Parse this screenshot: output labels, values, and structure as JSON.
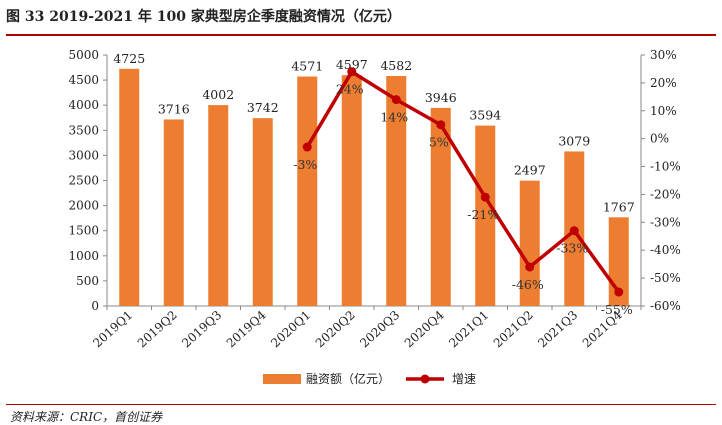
{
  "title": "图 33 2019-2021 年 100 家典型房企季度融资情况（亿元）",
  "source": "资料来源：CRIC，首创证券",
  "colors": {
    "bar": "#ED7D31",
    "line": "#C00000",
    "rule": "#B30000",
    "axis": "#888888"
  },
  "chart_data": {
    "type": "bar+line",
    "categories": [
      "2019Q1",
      "2019Q2",
      "2019Q3",
      "2019Q4",
      "2020Q1",
      "2020Q2",
      "2020Q3",
      "2020Q4",
      "2021Q1",
      "2021Q2",
      "2021Q3",
      "2021Q4"
    ],
    "series": [
      {
        "name": "融资额（亿元）",
        "type": "bar",
        "axis": "left",
        "values": [
          4725,
          3716,
          4002,
          3742,
          4571,
          4597,
          4582,
          3946,
          3594,
          2497,
          3079,
          1767
        ],
        "labels": [
          "4725",
          "3716",
          "4002",
          "3742",
          "4571",
          "4597",
          "4582",
          "3946",
          "3594",
          "2497",
          "3079",
          "1767"
        ]
      },
      {
        "name": "增速",
        "type": "line",
        "axis": "right",
        "values": [
          null,
          null,
          null,
          null,
          -3,
          24,
          14,
          5,
          -21,
          -46,
          -33,
          -55
        ],
        "labels": [
          "",
          "",
          "",
          "",
          "-3%",
          "24%",
          "14%",
          "5%",
          "-21%",
          "-46%",
          "-33%",
          "-55%"
        ]
      }
    ],
    "y_left": {
      "min": 0,
      "max": 5000,
      "step": 500,
      "tick_labels": [
        "0",
        "500",
        "1000",
        "1500",
        "2000",
        "2500",
        "3000",
        "3500",
        "4000",
        "4500",
        "5000"
      ]
    },
    "y_right": {
      "min": -60,
      "max": 30,
      "step": 10,
      "tick_labels": [
        "-60%",
        "-50%",
        "-40%",
        "-30%",
        "-20%",
        "-10%",
        "0%",
        "10%",
        "20%",
        "30%"
      ]
    },
    "grid": false,
    "legend_position": "bottom"
  }
}
